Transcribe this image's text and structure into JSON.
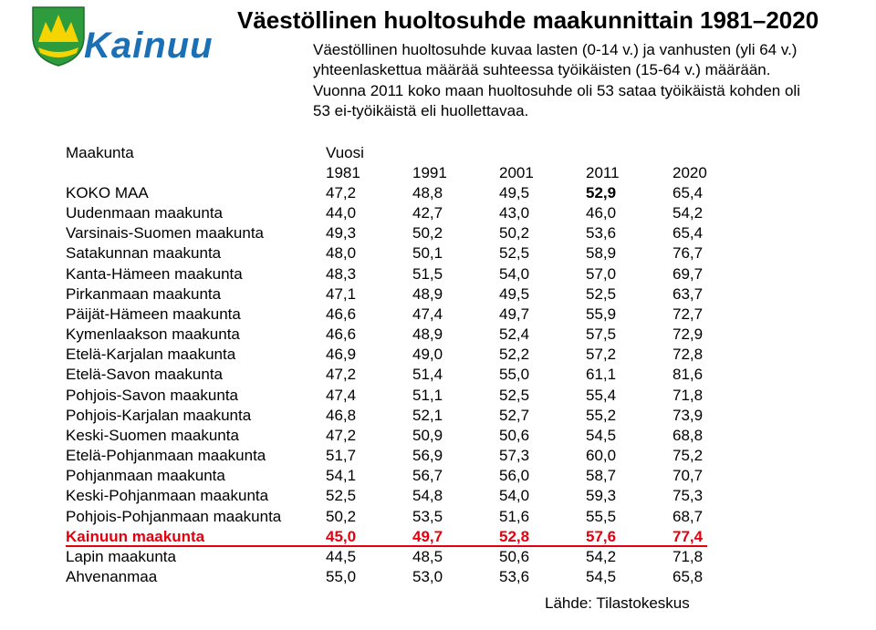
{
  "logo": {
    "text": "Kainuu"
  },
  "header": {
    "title": "Väestöllinen huoltosuhde maakunnittain 1981–2020",
    "intro_lines": [
      "Väestöllinen huoltosuhde kuvaa lasten (0-14 v.) ja vanhusten (yli 64 v.)",
      "yhteenlaskettua määrää suhteessa työikäisten (15-64 v.) määrään.",
      "Vuonna 2011 koko maan huoltosuhde oli 53 sataa työikäistä kohden oli",
      "53 ei-työikäistä eli huollettavaa."
    ]
  },
  "table": {
    "name_header": "Maakunta",
    "year_header": "Vuosi",
    "years": [
      "1981",
      "1991",
      "2001",
      "2011",
      "2020"
    ],
    "rows": [
      {
        "name": "KOKO MAA",
        "values": [
          "47,2",
          "48,8",
          "49,5",
          {
            "text": "52,9",
            "bold": true
          },
          "65,4"
        ]
      },
      {
        "name": "Uudenmaan maakunta",
        "values": [
          "44,0",
          "42,7",
          "43,0",
          "46,0",
          "54,2"
        ]
      },
      {
        "name": "Varsinais-Suomen maakunta",
        "values": [
          "49,3",
          "50,2",
          "50,2",
          "53,6",
          "65,4"
        ]
      },
      {
        "name": "Satakunnan maakunta",
        "values": [
          "48,0",
          "50,1",
          "52,5",
          "58,9",
          "76,7"
        ]
      },
      {
        "name": "Kanta-Hämeen maakunta",
        "values": [
          "48,3",
          "51,5",
          "54,0",
          "57,0",
          "69,7"
        ]
      },
      {
        "name": "Pirkanmaan maakunta",
        "values": [
          "47,1",
          "48,9",
          "49,5",
          "52,5",
          "63,7"
        ]
      },
      {
        "name": "Päijät-Hämeen maakunta",
        "values": [
          "46,6",
          "47,4",
          "49,7",
          "55,9",
          "72,7"
        ]
      },
      {
        "name": "Kymenlaakson maakunta",
        "values": [
          "46,6",
          "48,9",
          "52,4",
          "57,5",
          "72,9"
        ]
      },
      {
        "name": "Etelä-Karjalan maakunta",
        "values": [
          "46,9",
          "49,0",
          "52,2",
          "57,2",
          "72,8"
        ]
      },
      {
        "name": "Etelä-Savon maakunta",
        "values": [
          "47,2",
          "51,4",
          "55,0",
          "61,1",
          "81,6"
        ]
      },
      {
        "name": "Pohjois-Savon maakunta",
        "values": [
          "47,4",
          "51,1",
          "52,5",
          "55,4",
          "71,8"
        ]
      },
      {
        "name": "Pohjois-Karjalan maakunta",
        "values": [
          "46,8",
          "52,1",
          "52,7",
          "55,2",
          "73,9"
        ]
      },
      {
        "name": "Keski-Suomen maakunta",
        "values": [
          "47,2",
          "50,9",
          "50,6",
          "54,5",
          "68,8"
        ]
      },
      {
        "name": "Etelä-Pohjanmaan maakunta",
        "values": [
          "51,7",
          "56,9",
          "57,3",
          "60,0",
          "75,2"
        ]
      },
      {
        "name": "Pohjanmaan maakunta",
        "values": [
          "54,1",
          "56,7",
          "56,0",
          "58,7",
          "70,7"
        ]
      },
      {
        "name": "Keski-Pohjanmaan maakunta",
        "values": [
          "52,5",
          "54,8",
          "54,0",
          "59,3",
          "75,3"
        ]
      },
      {
        "name": "Pohjois-Pohjanmaan maakunta",
        "values": [
          "50,2",
          "53,5",
          "51,6",
          "55,5",
          "68,7"
        ]
      },
      {
        "name": "Kainuun maakunta",
        "color": "#e3000f",
        "bold": true,
        "underline": true,
        "values": [
          "45,0",
          "49,7",
          "52,8",
          "57,6",
          "77,4"
        ]
      },
      {
        "name": "Lapin maakunta",
        "values": [
          "44,5",
          "48,5",
          "50,6",
          "54,2",
          "71,8"
        ]
      },
      {
        "name": "Ahvenanmaa",
        "values": [
          "55,0",
          "53,0",
          "53,6",
          "54,5",
          "65,8"
        ]
      }
    ]
  },
  "source": "Lähde: Tilastokeskus"
}
